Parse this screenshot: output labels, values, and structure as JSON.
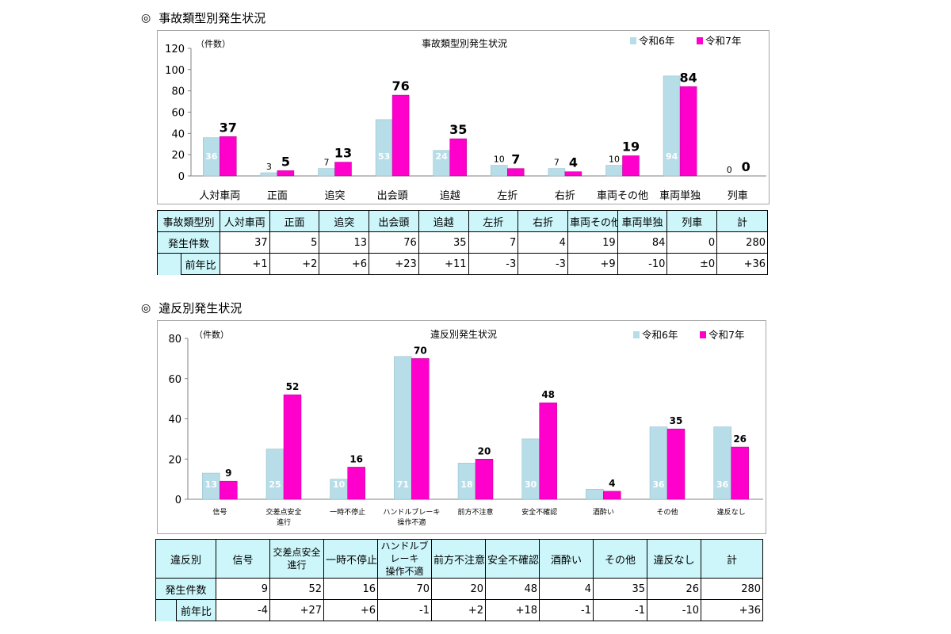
{
  "colors": {
    "prev": "#b7dde8",
    "curr": "#ff00cc",
    "header_bg": "#cdf6fa"
  },
  "section1": {
    "heading_mark": "◎",
    "heading": "事故類型別発生状況"
  },
  "section2": {
    "heading_mark": "◎",
    "heading": "違反別発生状況"
  },
  "chart_data": [
    {
      "type": "bar",
      "title": "事故類型別発生状況",
      "ylabel": "（件数）",
      "ylim": [
        0,
        120
      ],
      "yticks": [
        0,
        20,
        40,
        60,
        80,
        100,
        120
      ],
      "grid": false,
      "legend_position": "top-right",
      "categories": [
        "人対車両",
        "正面",
        "追突",
        "出会頭",
        "追越",
        "左折",
        "右折",
        "車両その他",
        "車両単独",
        "列車"
      ],
      "series": [
        {
          "name": "令和6年",
          "values": [
            36,
            3,
            7,
            53,
            24,
            10,
            7,
            10,
            94,
            0
          ]
        },
        {
          "name": "令和7年",
          "values": [
            37,
            5,
            13,
            76,
            35,
            7,
            4,
            19,
            84,
            0
          ]
        }
      ]
    },
    {
      "type": "bar",
      "title": "違反別発生状況",
      "ylabel": "（件数）",
      "ylim": [
        0,
        80
      ],
      "yticks": [
        0,
        20,
        40,
        60,
        80
      ],
      "grid": false,
      "legend_position": "top-right",
      "categories": [
        [
          "信号"
        ],
        [
          "交差点安全",
          "進行"
        ],
        [
          "一時不停止"
        ],
        [
          "ハンドルブレーキ",
          "操作不適"
        ],
        [
          "前方不注意"
        ],
        [
          "安全不確認"
        ],
        [
          "酒酔い"
        ],
        [
          "その他"
        ],
        [
          "違反なし"
        ]
      ],
      "series": [
        {
          "name": "令和6年",
          "values": [
            13,
            25,
            10,
            71,
            18,
            30,
            5,
            36,
            36
          ]
        },
        {
          "name": "令和7年",
          "values": [
            9,
            52,
            16,
            70,
            20,
            48,
            4,
            35,
            26
          ]
        }
      ]
    }
  ],
  "table1": {
    "header_label": "事故類型別",
    "columns": [
      "人対車両",
      "正面",
      "追突",
      "出会頭",
      "追越",
      "左折",
      "右折",
      "車両その他",
      "車両単独",
      "列車",
      "計"
    ],
    "row1_label": "発生件数",
    "row1": [
      "37",
      "5",
      "13",
      "76",
      "35",
      "7",
      "4",
      "19",
      "84",
      "0",
      "280"
    ],
    "row2_label": "前年比",
    "row2": [
      "+1",
      "+2",
      "+6",
      "+23",
      "+11",
      "-3",
      "-3",
      "+9",
      "-10",
      "±0",
      "+36"
    ]
  },
  "table2": {
    "header_label": "違反別",
    "columns": [
      [
        "信号"
      ],
      [
        "交差点安全",
        "進行"
      ],
      [
        "一時不停止"
      ],
      [
        "ハンドルブレーキ",
        "操作不適"
      ],
      [
        "前方不注意"
      ],
      [
        "安全不確認"
      ],
      [
        "酒酔い"
      ],
      [
        "その他"
      ],
      [
        "違反なし"
      ],
      [
        "計"
      ]
    ],
    "row1_label": "発生件数",
    "row1": [
      "9",
      "52",
      "16",
      "70",
      "20",
      "48",
      "4",
      "35",
      "26",
      "280"
    ],
    "row2_label": "前年比",
    "row2": [
      "-4",
      "+27",
      "+6",
      "-1",
      "+2",
      "+18",
      "-1",
      "-1",
      "-10",
      "+36"
    ]
  }
}
